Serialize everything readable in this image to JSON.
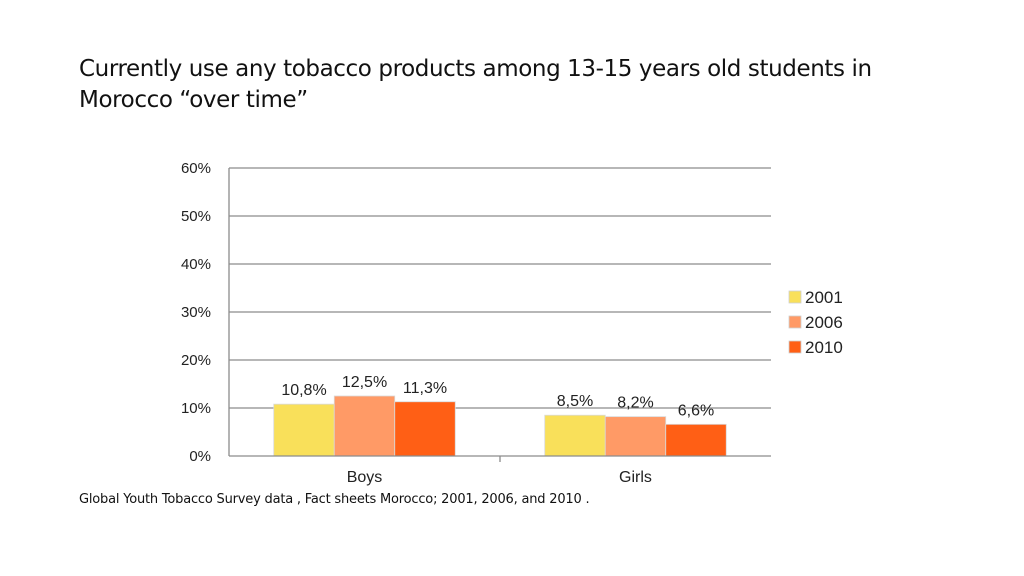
{
  "slide": {
    "title": "Currently use any tobacco products among 13-15 years old students in Morocco “over time”",
    "source": "Global Youth Tobacco Survey data  , Fact sheets Morocco; 2001, 2006, and 2010 ."
  },
  "chart_data": {
    "type": "bar",
    "categories": [
      "Boys",
      "Girls"
    ],
    "series": [
      {
        "name": "2001",
        "values": [
          10.8,
          8.5
        ],
        "labels": [
          "10,8%",
          "8,5%"
        ],
        "color": "#f9e05a"
      },
      {
        "name": "2006",
        "values": [
          12.5,
          8.2
        ],
        "labels": [
          "12,5%",
          "8,2%"
        ],
        "color": "#ff9a66"
      },
      {
        "name": "2010",
        "values": [
          11.3,
          6.6
        ],
        "labels": [
          "11,3%",
          "6,6%"
        ],
        "color": "#ff5f15"
      }
    ],
    "ylim": [
      0,
      60
    ],
    "yticks": [
      0,
      10,
      20,
      30,
      40,
      50,
      60
    ],
    "ytick_labels": [
      "0%",
      "10%",
      "20%",
      "30%",
      "40%",
      "50%",
      "60%"
    ],
    "grid": true,
    "legend": "right"
  }
}
